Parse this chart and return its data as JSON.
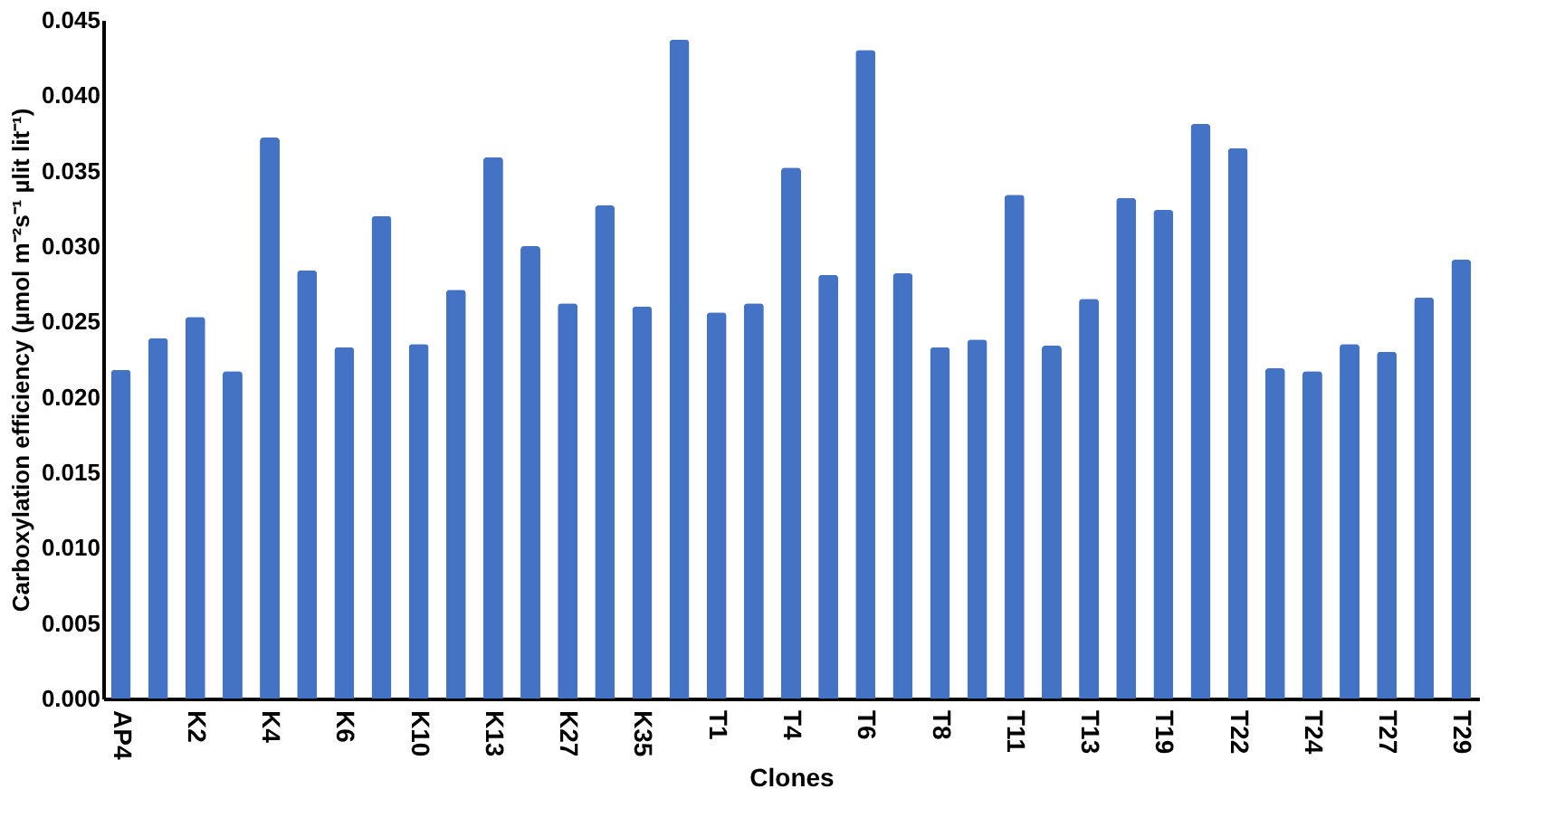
{
  "chart_data": {
    "type": "bar",
    "xlabel": "Clones",
    "ylabel": "Carboxylation efficiency (µmol m⁻²s⁻¹ µlit lit⁻¹)",
    "categories": [
      "AP4",
      null,
      "K2",
      null,
      "K4",
      null,
      "K6",
      null,
      "K10",
      null,
      "K13",
      null,
      "K27",
      null,
      "K35",
      null,
      "T1",
      null,
      "T4",
      null,
      "T6",
      null,
      "T8",
      null,
      "T11",
      null,
      "T13",
      null,
      "T19",
      null,
      "T22",
      null,
      "T24",
      null,
      "T27",
      null,
      "T29"
    ],
    "values": [
      0.0218,
      0.0239,
      0.0253,
      0.0217,
      0.0372,
      0.0284,
      0.0233,
      0.032,
      0.0235,
      0.0271,
      0.0359,
      0.03,
      0.0262,
      0.0327,
      0.026,
      0.0437,
      0.0256,
      0.0262,
      0.0352,
      0.0281,
      0.043,
      0.0282,
      0.0233,
      0.0238,
      0.0334,
      0.0234,
      0.0265,
      0.0332,
      0.0324,
      0.0381,
      0.0365,
      0.0219,
      0.0217,
      0.0235,
      0.023,
      0.0266,
      0.0291
    ],
    "color": "#4472c4",
    "ylim": [
      0,
      0.045
    ],
    "yticks": [
      {
        "value": 0,
        "label": "0.000"
      },
      {
        "value": 0.005,
        "label": "0.005"
      },
      {
        "value": 0.01,
        "label": "0.010"
      },
      {
        "value": 0.015,
        "label": "0.015"
      },
      {
        "value": 0.02,
        "label": "0.020"
      },
      {
        "value": 0.025,
        "label": "0.025"
      },
      {
        "value": 0.03,
        "label": "0.030"
      },
      {
        "value": 0.035,
        "label": "0.035"
      },
      {
        "value": 0.04,
        "label": "0.040"
      },
      {
        "value": 0.045,
        "label": "0.045"
      }
    ],
    "grid": false
  }
}
